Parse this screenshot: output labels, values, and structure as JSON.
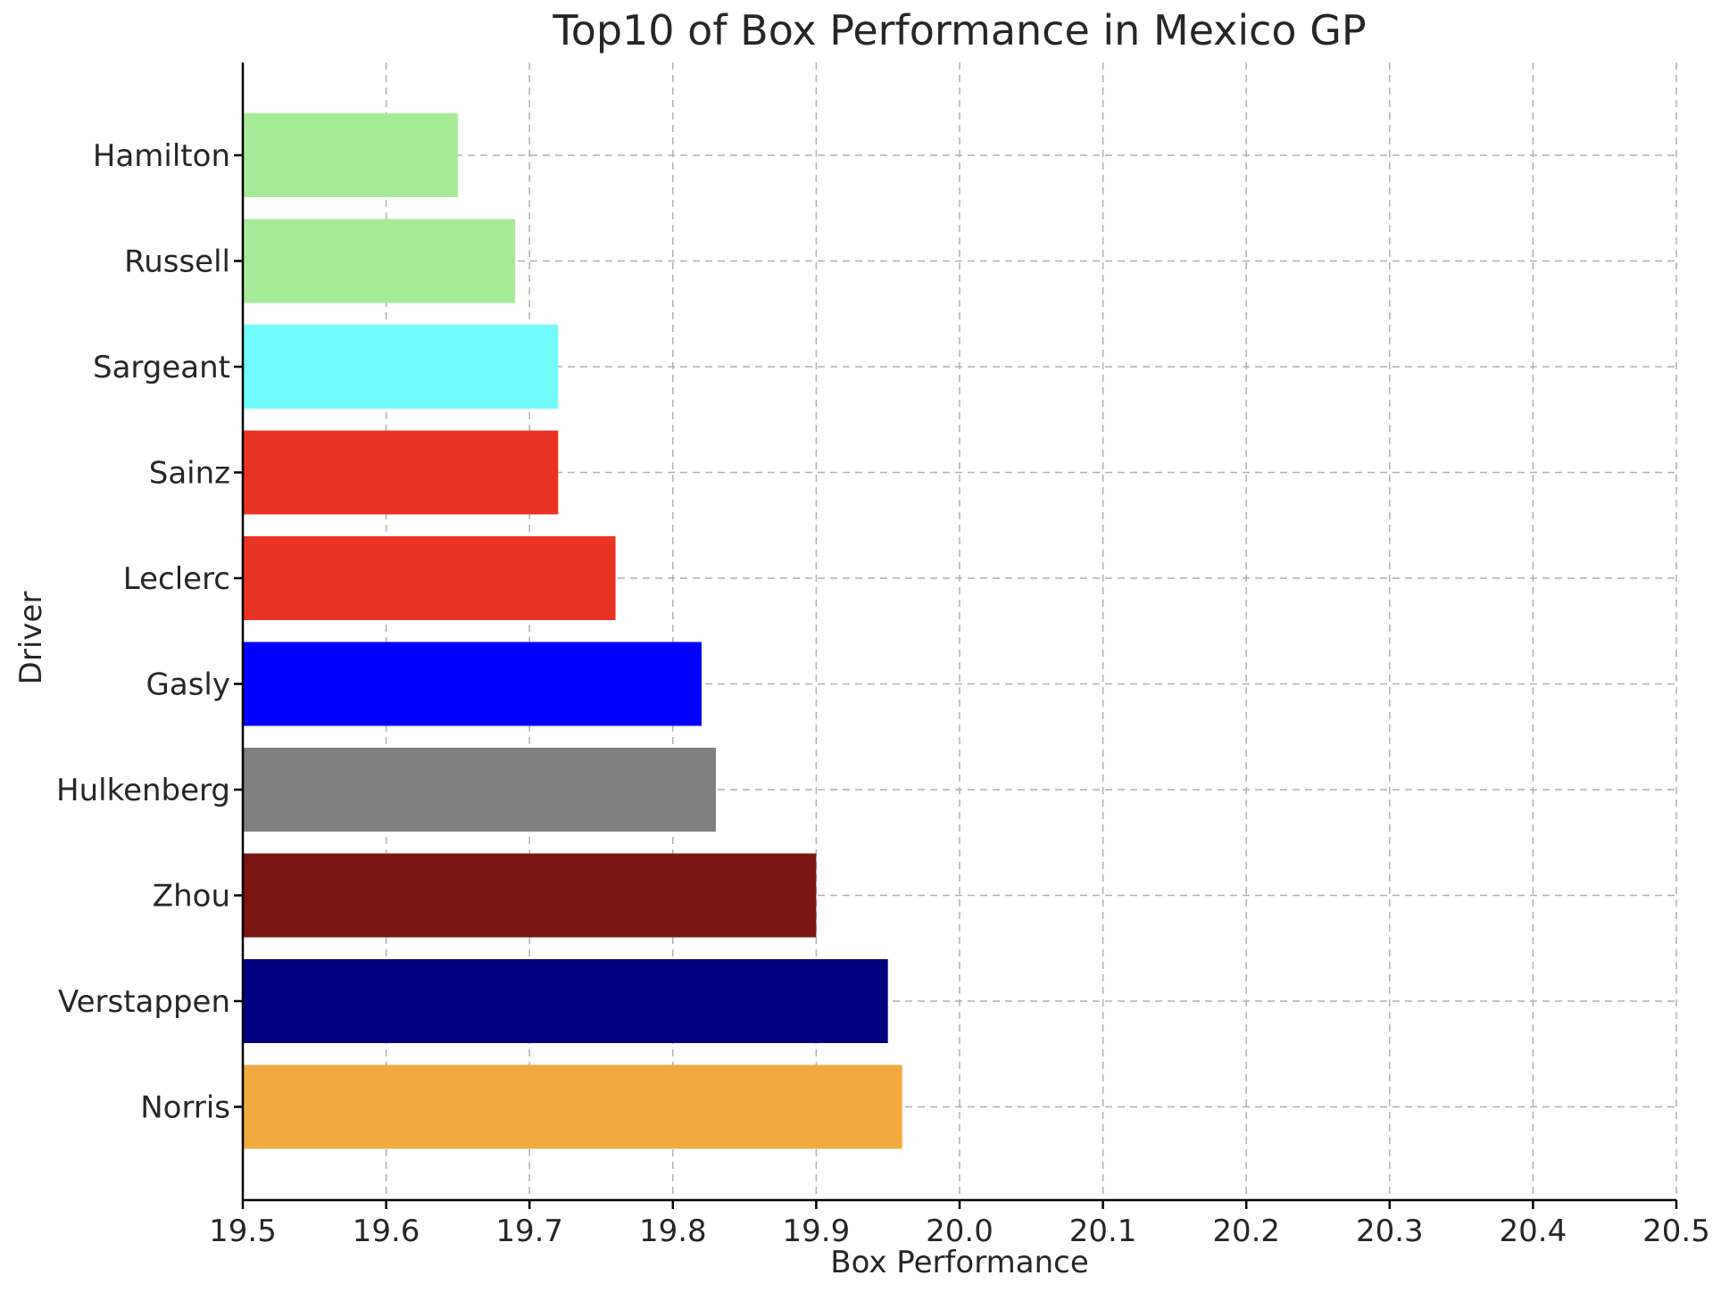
{
  "chart_data": {
    "type": "bar",
    "orientation": "horizontal",
    "title": "Top10 of Box Performance in Mexico GP",
    "xlabel": "Box Performance",
    "ylabel": "Driver",
    "xlim": [
      19.5,
      20.5
    ],
    "xticks": [
      "19.5",
      "19.6",
      "19.7",
      "19.8",
      "19.9",
      "20.0",
      "20.1",
      "20.2",
      "20.3",
      "20.4",
      "20.5"
    ],
    "grid": true,
    "categories": [
      "Hamilton",
      "Russell",
      "Sargeant",
      "Sainz",
      "Leclerc",
      "Gasly",
      "Hulkenberg",
      "Zhou",
      "Verstappen",
      "Norris"
    ],
    "values": [
      19.65,
      19.69,
      19.72,
      19.72,
      19.76,
      19.82,
      19.83,
      19.9,
      19.95,
      19.96
    ],
    "colors": [
      "#a6eb96",
      "#a6eb96",
      "#72fbfc",
      "#e93324",
      "#e93324",
      "#0000ff",
      "#808080",
      "#7b1611",
      "#010080",
      "#f0aa3f"
    ]
  }
}
